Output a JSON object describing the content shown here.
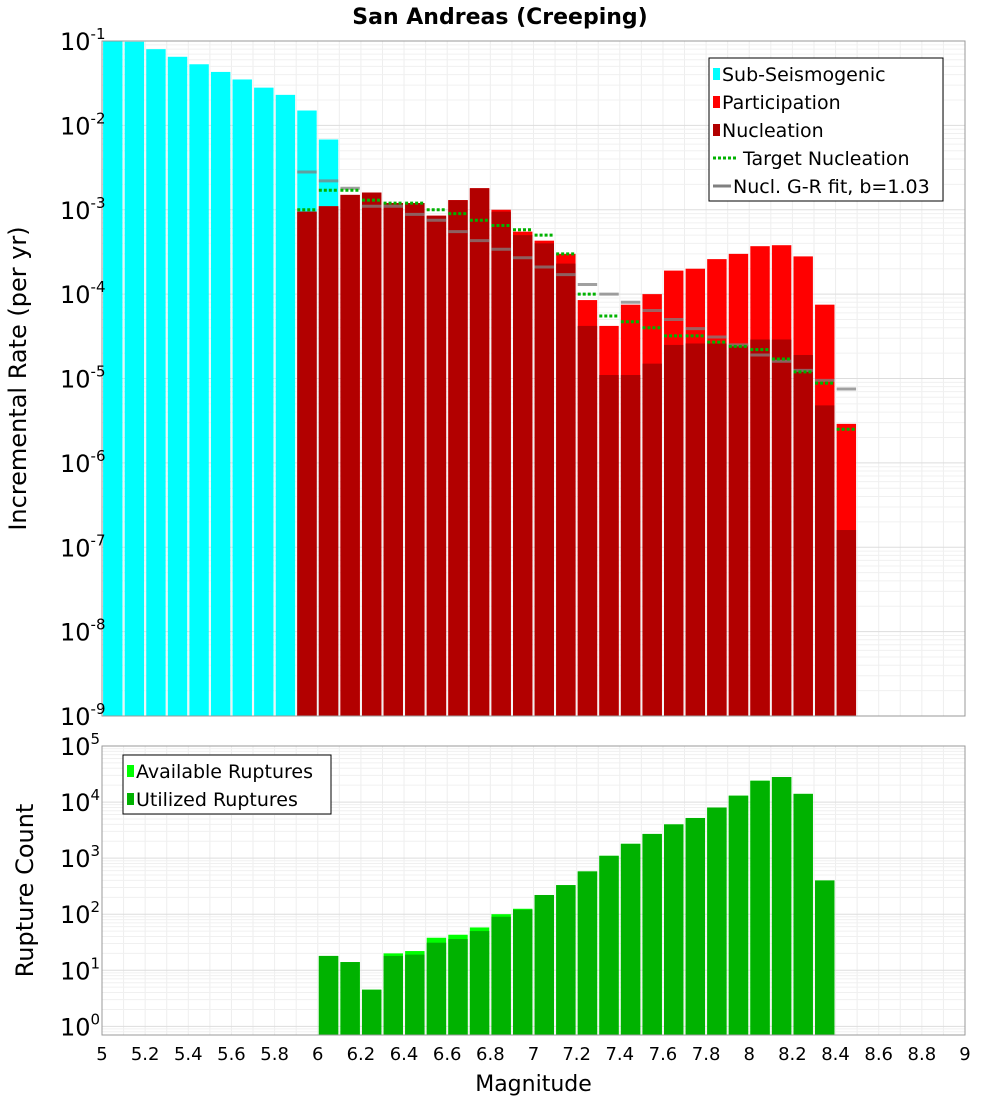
{
  "title": "San Andreas (Creeping)",
  "chart_data": [
    {
      "type": "bar",
      "panel": "top",
      "title": "San Andreas (Creeping)",
      "xlabel": "",
      "ylabel": "Incremental Rate (per yr)",
      "xlim": [
        5,
        9
      ],
      "ylim": [
        1e-09,
        0.1
      ],
      "yscale": "log",
      "bar_width": 0.09,
      "grid": true,
      "legend_position": "top-right",
      "y_ticks": [
        {
          "value": 1e-09,
          "base": "10",
          "exp": "-9"
        },
        {
          "value": 1e-08,
          "base": "10",
          "exp": "-8"
        },
        {
          "value": 1e-07,
          "base": "10",
          "exp": "-7"
        },
        {
          "value": 1e-06,
          "base": "10",
          "exp": "-6"
        },
        {
          "value": 1e-05,
          "base": "10",
          "exp": "-5"
        },
        {
          "value": 0.0001,
          "base": "10",
          "exp": "-4"
        },
        {
          "value": 0.001,
          "base": "10",
          "exp": "-3"
        },
        {
          "value": 0.01,
          "base": "10",
          "exp": "-2"
        },
        {
          "value": 0.1,
          "base": "10",
          "exp": "-1"
        }
      ],
      "legend": [
        {
          "label": "Sub-Seismogenic",
          "kind": "box",
          "color": "#00ffff"
        },
        {
          "label": "Participation",
          "kind": "box",
          "color": "#ff0000"
        },
        {
          "label": "Nucleation",
          "kind": "box",
          "color": "#b20000"
        },
        {
          "label": "Target Nucleation",
          "kind": "dotted",
          "color": "#00b200"
        },
        {
          "label": "Nucl. G-R fit, b=1.03",
          "kind": "line",
          "color": "#808080"
        }
      ],
      "series": [
        {
          "name": "Sub-Seismogenic",
          "color": "#00ffff",
          "x": [
            5.05,
            5.15,
            5.25,
            5.35,
            5.45,
            5.55,
            5.65,
            5.75,
            5.85,
            5.95,
            6.05
          ],
          "values": [
            0.1,
            0.098,
            0.08,
            0.065,
            0.053,
            0.043,
            0.035,
            0.028,
            0.023,
            0.015,
            0.0068
          ]
        },
        {
          "name": "Participation",
          "color": "#ff0000",
          "x": [
            5.95,
            6.05,
            6.15,
            6.25,
            6.35,
            6.45,
            6.55,
            6.65,
            6.75,
            6.85,
            6.95,
            7.05,
            7.15,
            7.25,
            7.35,
            7.45,
            7.55,
            7.65,
            7.75,
            7.85,
            7.95,
            8.05,
            8.15,
            8.25,
            8.35,
            8.45
          ],
          "values": [
            0.00095,
            0.0011,
            0.0015,
            0.0016,
            0.0012,
            0.0012,
            0.00085,
            0.0013,
            0.0018,
            0.001,
            0.00055,
            0.00043,
            0.0003,
            8.5e-05,
            4.2e-05,
            7.5e-05,
            0.0001,
            0.00019,
            0.0002,
            0.00026,
            0.0003,
            0.00037,
            0.00038,
            0.00028,
            7.5e-05,
            2.9e-06
          ]
        },
        {
          "name": "Nucleation",
          "color": "#b20000",
          "x": [
            5.95,
            6.05,
            6.15,
            6.25,
            6.35,
            6.45,
            6.55,
            6.65,
            6.75,
            6.85,
            6.95,
            7.05,
            7.15,
            7.25,
            7.35,
            7.45,
            7.55,
            7.65,
            7.75,
            7.85,
            7.95,
            8.05,
            8.15,
            8.25,
            8.35,
            8.45
          ],
          "values": [
            0.00095,
            0.0011,
            0.0015,
            0.0016,
            0.0012,
            0.0012,
            0.00085,
            0.0013,
            0.0018,
            0.00095,
            0.0005,
            0.0004,
            0.00023,
            4.2e-05,
            1.1e-05,
            1.1e-05,
            1.5e-05,
            2.5e-05,
            2.6e-05,
            2.6e-05,
            2.5e-05,
            2.9e-05,
            2.9e-05,
            1.9e-05,
            4.8e-06,
            1.6e-07
          ]
        },
        {
          "name": "Target Nucleation",
          "color": "#00b200",
          "x": [
            5.95,
            6.05,
            6.15,
            6.25,
            6.35,
            6.45,
            6.55,
            6.65,
            6.75,
            6.85,
            6.95,
            7.05,
            7.15,
            7.25,
            7.35,
            7.45,
            7.55,
            7.65,
            7.75,
            7.85,
            7.95,
            8.05,
            8.15,
            8.25,
            8.35,
            8.45
          ],
          "values": [
            0.001,
            0.0017,
            0.0017,
            0.0013,
            0.0012,
            0.0012,
            0.001,
            0.0009,
            0.00075,
            0.00065,
            0.00058,
            0.0005,
            0.0003,
            0.0001,
            5.5e-05,
            4.7e-05,
            4e-05,
            3.2e-05,
            3.2e-05,
            2.7e-05,
            2.4e-05,
            2.2e-05,
            1.7e-05,
            1.2e-05,
            8.8e-06,
            2.5e-06
          ]
        },
        {
          "name": "Nucl. G-R fit, b=1.03",
          "color": "#808080",
          "x": [
            5.95,
            6.05,
            6.15,
            6.25,
            6.35,
            6.45,
            6.55,
            6.65,
            6.75,
            6.85,
            6.95,
            7.05,
            7.15,
            7.25,
            7.35,
            7.45,
            7.55,
            7.65,
            7.75,
            7.85,
            7.95,
            8.05,
            8.15,
            8.25,
            8.35,
            8.45
          ],
          "values": [
            0.0028,
            0.0022,
            0.0018,
            0.0011,
            0.0011,
            0.00088,
            0.00075,
            0.00055,
            0.00043,
            0.00034,
            0.00027,
            0.00021,
            0.00017,
            0.00013,
            0.0001,
            8e-05,
            6.4e-05,
            5e-05,
            3.9e-05,
            3.1e-05,
            2.5e-05,
            1.9e-05,
            1.6e-05,
            1.25e-05,
            9.5e-06,
            7.5e-06
          ]
        }
      ]
    },
    {
      "type": "bar",
      "panel": "bottom",
      "xlabel": "Magnitude",
      "ylabel": "Rupture Count",
      "xlim": [
        5,
        9
      ],
      "ylim": [
        0.7,
        100000
      ],
      "yscale": "log",
      "bar_width": 0.09,
      "grid": true,
      "legend_position": "top-left",
      "x_ticks": [
        "5",
        "5.2",
        "5.4",
        "5.6",
        "5.8",
        "6",
        "6.2",
        "6.4",
        "6.6",
        "6.8",
        "7",
        "7.2",
        "7.4",
        "7.6",
        "7.8",
        "8",
        "8.2",
        "8.4",
        "8.6",
        "8.8",
        "9"
      ],
      "y_ticks": [
        {
          "value": 1,
          "base": "10",
          "exp": "0"
        },
        {
          "value": 10,
          "base": "10",
          "exp": "1"
        },
        {
          "value": 100,
          "base": "10",
          "exp": "2"
        },
        {
          "value": 1000,
          "base": "10",
          "exp": "3"
        },
        {
          "value": 10000,
          "base": "10",
          "exp": "4"
        },
        {
          "value": 100000,
          "base": "10",
          "exp": "5"
        }
      ],
      "legend": [
        {
          "label": "Available Ruptures",
          "kind": "box",
          "color": "#00ff00"
        },
        {
          "label": "Utilized Ruptures",
          "kind": "box",
          "color": "#00b200"
        }
      ],
      "series": [
        {
          "name": "Available Ruptures",
          "color": "#00ff00",
          "x": [
            6.05,
            6.15,
            6.25,
            6.35,
            6.45,
            6.55,
            6.65,
            6.75,
            6.85,
            6.95,
            7.05,
            7.15,
            7.25,
            7.35,
            7.45,
            7.55,
            7.65,
            7.75,
            7.85,
            7.95,
            8.05,
            8.15,
            8.25,
            8.35
          ],
          "values": [
            18,
            14,
            4.5,
            20,
            22,
            38,
            43,
            58,
            100,
            125,
            220,
            330,
            580,
            1100,
            1800,
            2700,
            4000,
            5200,
            8000,
            13000,
            24000,
            28000,
            14000,
            400
          ]
        },
        {
          "name": "Utilized Ruptures",
          "color": "#00b200",
          "x": [
            6.05,
            6.15,
            6.25,
            6.35,
            6.45,
            6.55,
            6.65,
            6.75,
            6.85,
            6.95,
            7.05,
            7.15,
            7.25,
            7.35,
            7.45,
            7.55,
            7.65,
            7.75,
            7.85,
            7.95,
            8.05,
            8.15,
            8.25,
            8.35
          ],
          "values": [
            18,
            14,
            4.5,
            18,
            19,
            31,
            36,
            50,
            90,
            120,
            220,
            330,
            580,
            1100,
            1800,
            2700,
            4000,
            5200,
            8000,
            13000,
            24000,
            28000,
            14000,
            400
          ]
        }
      ]
    }
  ]
}
